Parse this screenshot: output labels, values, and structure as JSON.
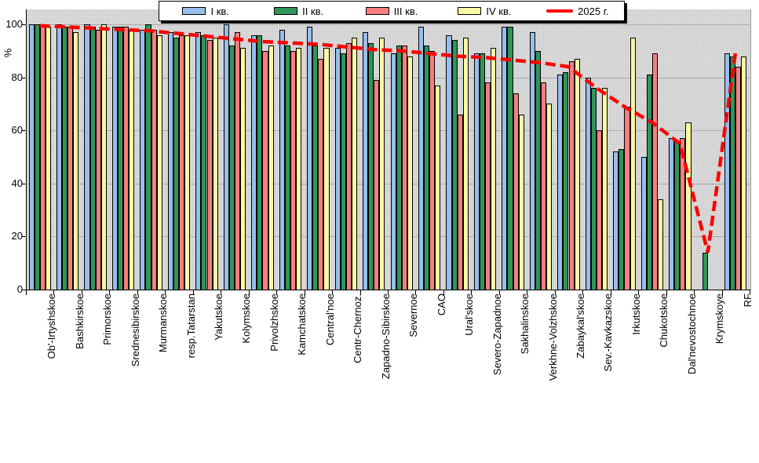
{
  "ylabel": "%",
  "legend": {
    "items": [
      {
        "label": "I кв.",
        "color": "#97BEEC",
        "kind": "bar"
      },
      {
        "label": "II кв.",
        "color": "#2E9658",
        "kind": "bar"
      },
      {
        "label": "III кв.",
        "color": "#F97E7E",
        "kind": "bar"
      },
      {
        "label": "IV кв.",
        "color": "#FBF8A5",
        "kind": "bar"
      },
      {
        "label": "2025 г.",
        "color": "#FF0000",
        "kind": "line"
      }
    ]
  },
  "chart_data": {
    "type": "bar",
    "title": "",
    "xlabel": "",
    "ylabel": "%",
    "ylim": [
      0,
      100
    ],
    "yticks": [
      0,
      20,
      40,
      60,
      80,
      100
    ],
    "grid": true,
    "legend_position": "top",
    "categories": [
      "Ob'-Irtyshskoe",
      "Bashkirskoe",
      "Primorskoe",
      "Srednesibirskoe",
      "Murmanskoe",
      "resp.Tatarstan",
      "Yakutskoe",
      "Kolymskoe",
      "Privolzhskoe",
      "Kamchatskoe",
      "Central'noe",
      "Centr-Chernoz.",
      "Zapadno-Sibirskoe",
      "Severnoe",
      "CAO",
      "Ural'skoe",
      "Severo-Zapadnoe",
      "Sakhalinskoe",
      "Verkhne-Volzhskoe",
      "Zabaykal'skoe",
      "Sev.-Kavkazskoe",
      "Irkutskoe",
      "Chukotskoe",
      "Dal'nevostochnoe",
      "Krymskoye",
      "RF"
    ],
    "series": [
      {
        "name": "I кв.",
        "type": "bar",
        "color": "#97BEEC",
        "values": [
          100,
          100,
          100,
          99,
          98,
          97,
          97,
          100,
          96,
          98,
          99,
          91,
          97,
          89,
          99,
          96,
          89,
          99,
          97,
          81,
          80,
          52,
          50,
          57,
          0,
          89
        ]
      },
      {
        "name": "II кв.",
        "type": "bar",
        "color": "#2E9658",
        "values": [
          100,
          99,
          99,
          99,
          100,
          95,
          96,
          92,
          96,
          92,
          92,
          89,
          93,
          92,
          92,
          94,
          89,
          99,
          90,
          82,
          76,
          53,
          81,
          56,
          14,
          88
        ]
      },
      {
        "name": "III кв.",
        "type": "bar",
        "color": "#F97E7E",
        "values": [
          99,
          99,
          98,
          99,
          98,
          96,
          94,
          97,
          90,
          90,
          87,
          93,
          79,
          92,
          90,
          66,
          78,
          74,
          78,
          86,
          60,
          69,
          89,
          57,
          0,
          84
        ]
      },
      {
        "name": "IV кв.",
        "type": "bar",
        "color": "#FBF8A5",
        "values": [
          99,
          97,
          100,
          98,
          96,
          96,
          95,
          91,
          92,
          91,
          91,
          95,
          95,
          88,
          77,
          95,
          91,
          66,
          70,
          87,
          76,
          95,
          34,
          63,
          0,
          88
        ]
      },
      {
        "name": "2025 г.",
        "type": "line",
        "color": "#FF0000",
        "values": [
          99.5,
          99,
          98.5,
          98,
          97.5,
          96.5,
          95.5,
          94.5,
          93.5,
          93,
          92.5,
          91.5,
          90.5,
          90,
          89,
          88,
          87.5,
          86.5,
          85.5,
          84,
          76,
          69,
          63,
          55,
          14,
          90
        ]
      }
    ]
  }
}
